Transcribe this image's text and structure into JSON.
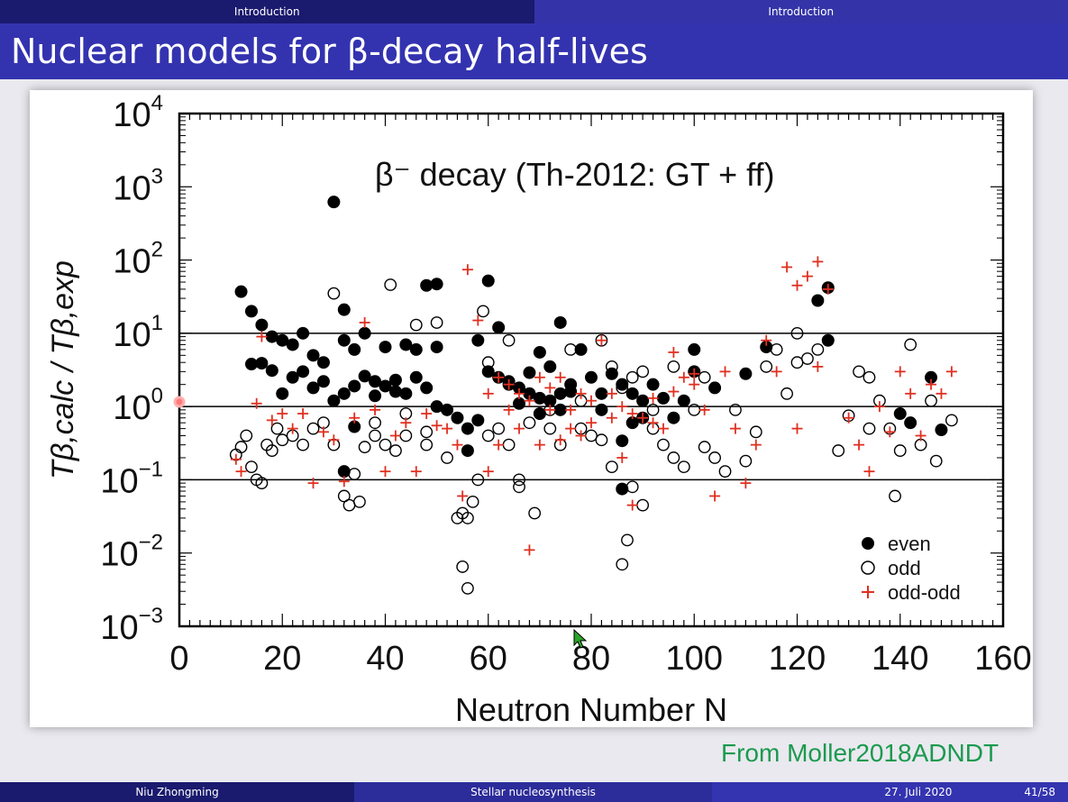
{
  "topbar": {
    "left": "Introduction",
    "right": "Introduction"
  },
  "slide": {
    "title": "Nuclear models for β-decay half-lives",
    "source": "From Moller2018ADNDT"
  },
  "footer": {
    "author": "Niu Zhongming",
    "talk": "Stellar nucleosynthesis",
    "date": "27. Juli 2020",
    "page": "41/58"
  },
  "colors": {
    "even": "#000000",
    "odd": "#000000",
    "oddodd": "#e03020",
    "title_bar": "#3333b0",
    "source": "#1b9a4e"
  },
  "chart_data": {
    "type": "scatter",
    "title": "β⁻ decay (Th-2012: GT + ff)",
    "xlabel": "Neutron Number N",
    "ylabel": "Tβ,calc / Tβ,exp",
    "xlim": [
      0,
      160
    ],
    "ylim": [
      0.001,
      10000
    ],
    "yscale": "log",
    "xticks": [
      "0",
      "20",
      "40",
      "60",
      "80",
      "100",
      "120",
      "140",
      "160"
    ],
    "yticks": [
      "10^4",
      "10^3",
      "10^2",
      "10^1",
      "10^0",
      "10^-1",
      "10^-2",
      "10^-3"
    ],
    "hlines": [
      10,
      1,
      0.1
    ],
    "legend_position": "bottom-right",
    "series": [
      {
        "name": "even",
        "marker": "filled-circle",
        "points": [
          [
            12,
            37
          ],
          [
            14,
            20
          ],
          [
            16,
            13
          ],
          [
            18,
            9
          ],
          [
            20,
            8
          ],
          [
            22,
            7
          ],
          [
            24,
            10
          ],
          [
            14,
            3.8
          ],
          [
            16,
            3.9
          ],
          [
            18,
            3.1
          ],
          [
            26,
            5
          ],
          [
            28,
            4
          ],
          [
            30,
            620
          ],
          [
            32,
            21
          ],
          [
            32,
            8
          ],
          [
            34,
            6
          ],
          [
            36,
            10
          ],
          [
            20,
            1.5
          ],
          [
            22,
            2.5
          ],
          [
            24,
            3
          ],
          [
            26,
            1.8
          ],
          [
            28,
            2.2
          ],
          [
            30,
            1.2
          ],
          [
            32,
            1.5
          ],
          [
            34,
            1.9
          ],
          [
            36,
            2.6
          ],
          [
            38,
            2.2
          ],
          [
            40,
            6.5
          ],
          [
            42,
            2.3
          ],
          [
            44,
            7
          ],
          [
            46,
            6
          ],
          [
            48,
            45
          ],
          [
            50,
            47
          ],
          [
            50,
            6.5
          ],
          [
            48,
            1.8
          ],
          [
            46,
            2.5
          ],
          [
            44,
            1.5
          ],
          [
            42,
            1.6
          ],
          [
            40,
            1.9
          ],
          [
            38,
            1.4
          ],
          [
            50,
            1.0
          ],
          [
            52,
            0.9
          ],
          [
            54,
            0.7
          ],
          [
            56,
            0.5
          ],
          [
            56,
            0.25
          ],
          [
            58,
            0.65
          ],
          [
            58,
            8
          ],
          [
            60,
            52
          ],
          [
            62,
            12
          ],
          [
            60,
            3
          ],
          [
            62,
            2.5
          ],
          [
            64,
            2
          ],
          [
            66,
            1.8
          ],
          [
            68,
            1.5
          ],
          [
            70,
            1.3
          ],
          [
            72,
            1.2
          ],
          [
            74,
            1.5
          ],
          [
            76,
            2
          ],
          [
            78,
            6
          ],
          [
            80,
            2.5
          ],
          [
            82,
            1.5
          ],
          [
            84,
            2.8
          ],
          [
            86,
            2
          ],
          [
            88,
            1.5
          ],
          [
            90,
            1.2
          ],
          [
            92,
            2
          ],
          [
            94,
            1.3
          ],
          [
            96,
            0.7
          ],
          [
            98,
            1.2
          ],
          [
            100,
            6
          ],
          [
            100,
            3
          ],
          [
            104,
            1.8
          ],
          [
            110,
            2.8
          ],
          [
            114,
            6.5
          ],
          [
            124,
            28
          ],
          [
            126,
            42
          ],
          [
            126,
            8
          ],
          [
            140,
            0.8
          ],
          [
            142,
            0.6
          ],
          [
            146,
            2.5
          ],
          [
            148,
            0.48
          ],
          [
            70,
            0.8
          ],
          [
            74,
            0.9
          ],
          [
            76,
            1.6
          ],
          [
            82,
            0.9
          ],
          [
            86,
            0.34
          ],
          [
            88,
            0.6
          ],
          [
            90,
            0.7
          ],
          [
            86,
            0.075
          ],
          [
            34,
            0.53
          ],
          [
            32,
            0.13
          ],
          [
            64,
            2.2
          ],
          [
            66,
            1.1
          ],
          [
            68,
            2.9
          ],
          [
            72,
            3.5
          ],
          [
            70,
            5.5
          ],
          [
            74,
            14
          ]
        ]
      },
      {
        "name": "odd",
        "marker": "open-circle",
        "points": [
          [
            11,
            0.22
          ],
          [
            12,
            0.28
          ],
          [
            13,
            0.4
          ],
          [
            14,
            0.15
          ],
          [
            15,
            0.1
          ],
          [
            16,
            0.09
          ],
          [
            17,
            0.3
          ],
          [
            18,
            0.25
          ],
          [
            19,
            0.5
          ],
          [
            20,
            0.35
          ],
          [
            22,
            0.4
          ],
          [
            24,
            0.3
          ],
          [
            26,
            0.5
          ],
          [
            28,
            0.6
          ],
          [
            30,
            35
          ],
          [
            30,
            0.3
          ],
          [
            32,
            0.06
          ],
          [
            33,
            0.045
          ],
          [
            35,
            0.05
          ],
          [
            34,
            0.12
          ],
          [
            36,
            0.28
          ],
          [
            38,
            0.4
          ],
          [
            40,
            0.3
          ],
          [
            41,
            46
          ],
          [
            42,
            0.25
          ],
          [
            44,
            0.4
          ],
          [
            46,
            13
          ],
          [
            48,
            0.3
          ],
          [
            50,
            14
          ],
          [
            52,
            0.2
          ],
          [
            54,
            0.03
          ],
          [
            55,
            0.035
          ],
          [
            55,
            0.0065
          ],
          [
            56,
            0.0033
          ],
          [
            56,
            0.03
          ],
          [
            57,
            0.05
          ],
          [
            58,
            0.1
          ],
          [
            59,
            20
          ],
          [
            60,
            0.4
          ],
          [
            62,
            0.5
          ],
          [
            64,
            0.3
          ],
          [
            66,
            0.1
          ],
          [
            66,
            0.08
          ],
          [
            68,
            0.6
          ],
          [
            69,
            0.035
          ],
          [
            70,
            0.8
          ],
          [
            72,
            0.5
          ],
          [
            74,
            0.3
          ],
          [
            76,
            6
          ],
          [
            78,
            0.5
          ],
          [
            80,
            0.4
          ],
          [
            82,
            0.35
          ],
          [
            84,
            0.15
          ],
          [
            86,
            0.007
          ],
          [
            87,
            0.015
          ],
          [
            88,
            0.08
          ],
          [
            90,
            0.045
          ],
          [
            92,
            0.5
          ],
          [
            94,
            0.3
          ],
          [
            96,
            0.2
          ],
          [
            98,
            0.15
          ],
          [
            100,
            0.9
          ],
          [
            102,
            0.28
          ],
          [
            104,
            0.2
          ],
          [
            106,
            0.13
          ],
          [
            108,
            0.9
          ],
          [
            110,
            0.18
          ],
          [
            112,
            0.45
          ],
          [
            114,
            3.5
          ],
          [
            116,
            6
          ],
          [
            118,
            1.5
          ],
          [
            120,
            10
          ],
          [
            120,
            4
          ],
          [
            122,
            4.5
          ],
          [
            124,
            6
          ],
          [
            126,
            8
          ],
          [
            128,
            0.25
          ],
          [
            130,
            0.75
          ],
          [
            132,
            3
          ],
          [
            134,
            0.5
          ],
          [
            134,
            2.5
          ],
          [
            136,
            1.2
          ],
          [
            138,
            0.5
          ],
          [
            139,
            0.06
          ],
          [
            140,
            0.25
          ],
          [
            142,
            7
          ],
          [
            144,
            0.3
          ],
          [
            146,
            1.2
          ],
          [
            147,
            0.18
          ],
          [
            150,
            0.65
          ],
          [
            60,
            4
          ],
          [
            64,
            8
          ],
          [
            68,
            1.5
          ],
          [
            72,
            0.9
          ],
          [
            78,
            1.2
          ],
          [
            82,
            8
          ],
          [
            84,
            3.5
          ],
          [
            86,
            1.8
          ],
          [
            88,
            2.5
          ],
          [
            90,
            3
          ],
          [
            92,
            0.9
          ],
          [
            96,
            3.5
          ],
          [
            102,
            2.5
          ],
          [
            38,
            0.6
          ],
          [
            44,
            0.8
          ],
          [
            48,
            0.45
          ]
        ]
      },
      {
        "name": "odd-odd",
        "marker": "plus",
        "points": [
          [
            11,
            0.19
          ],
          [
            12,
            0.13
          ],
          [
            15,
            1.1
          ],
          [
            16,
            9
          ],
          [
            18,
            0.65
          ],
          [
            20,
            0.8
          ],
          [
            22,
            0.5
          ],
          [
            24,
            0.8
          ],
          [
            26,
            0.09
          ],
          [
            28,
            0.45
          ],
          [
            30,
            0.35
          ],
          [
            32,
            0.095
          ],
          [
            34,
            0.7
          ],
          [
            36,
            14
          ],
          [
            38,
            0.9
          ],
          [
            40,
            0.13
          ],
          [
            42,
            0.4
          ],
          [
            44,
            0.6
          ],
          [
            46,
            0.13
          ],
          [
            48,
            0.8
          ],
          [
            50,
            0.55
          ],
          [
            52,
            0.5
          ],
          [
            54,
            0.3
          ],
          [
            55,
            0.06
          ],
          [
            56,
            74
          ],
          [
            58,
            15
          ],
          [
            60,
            0.13
          ],
          [
            62,
            0.3
          ],
          [
            64,
            0.9
          ],
          [
            66,
            0.5
          ],
          [
            68,
            0.011
          ],
          [
            70,
            0.3
          ],
          [
            72,
            0.9
          ],
          [
            74,
            0.35
          ],
          [
            76,
            0.5
          ],
          [
            78,
            0.4
          ],
          [
            80,
            0.6
          ],
          [
            82,
            8
          ],
          [
            84,
            0.7
          ],
          [
            86,
            0.2
          ],
          [
            88,
            0.045
          ],
          [
            90,
            0.7
          ],
          [
            92,
            0.6
          ],
          [
            94,
            0.5
          ],
          [
            96,
            5.5
          ],
          [
            98,
            2.5
          ],
          [
            100,
            2
          ],
          [
            102,
            0.9
          ],
          [
            104,
            0.06
          ],
          [
            106,
            3
          ],
          [
            108,
            0.5
          ],
          [
            110,
            0.09
          ],
          [
            112,
            0.3
          ],
          [
            114,
            8
          ],
          [
            116,
            3
          ],
          [
            118,
            80
          ],
          [
            120,
            45
          ],
          [
            120,
            0.5
          ],
          [
            122,
            60
          ],
          [
            124,
            95
          ],
          [
            126,
            40
          ],
          [
            124,
            3.5
          ],
          [
            130,
            0.7
          ],
          [
            132,
            0.3
          ],
          [
            134,
            0.13
          ],
          [
            136,
            1
          ],
          [
            138,
            0.45
          ],
          [
            140,
            3
          ],
          [
            142,
            1.5
          ],
          [
            144,
            0.4
          ],
          [
            146,
            2
          ],
          [
            148,
            1.5
          ],
          [
            150,
            3
          ],
          [
            60,
            1.5
          ],
          [
            62,
            2.5
          ],
          [
            64,
            2
          ],
          [
            66,
            1.5
          ],
          [
            68,
            1.2
          ],
          [
            70,
            2.5
          ],
          [
            72,
            1.8
          ],
          [
            74,
            2.5
          ],
          [
            76,
            0.9
          ],
          [
            78,
            1.5
          ],
          [
            80,
            1.2
          ],
          [
            84,
            1.5
          ],
          [
            86,
            1
          ],
          [
            88,
            0.8
          ],
          [
            92,
            1.3
          ],
          [
            96,
            1.6
          ],
          [
            100,
            2.8
          ]
        ]
      }
    ]
  }
}
